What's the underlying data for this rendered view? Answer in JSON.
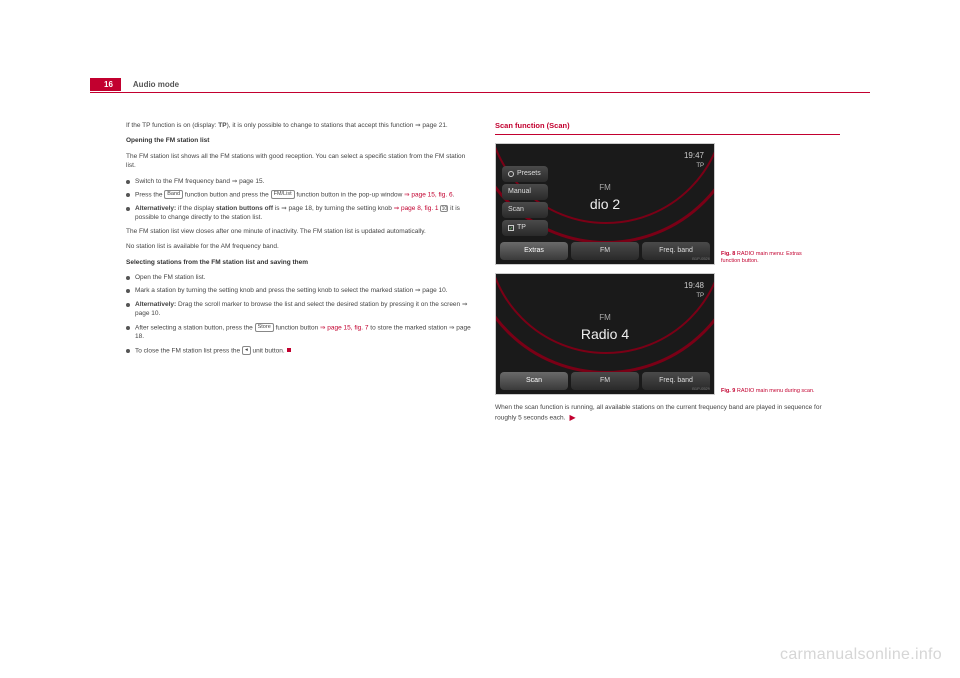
{
  "header": {
    "page_number": "16",
    "section": "Audio mode"
  },
  "left_column": {
    "intro_prefix": "If the TP function is on (display: ",
    "intro_bold": "TP",
    "intro_suffix": "), it is only possible to change to stations that accept this function ⇒ page 21.",
    "sub1_title": "Opening the FM station list",
    "sub1_p1": "The FM station list shows all the FM stations with good reception. You can select a specific station from the FM station list.",
    "b1": "Switch to the FM frequency band ⇒ page 15.",
    "b2_a": "Press the ",
    "b2_btn1": "Band",
    "b2_b": " function button and press the ",
    "b2_btn2": "FM/List",
    "b2_c": " function button in the pop-up window ",
    "b2_ref": "⇒ page 15, fig. 6",
    "b2_d": ".",
    "b3_a": "Alternatively:",
    "b3_b": " if the display ",
    "b3_bold": "station buttons off",
    "b3_c": " is ⇒ page 18, by turning the setting knob ",
    "b3_ref": "⇒ page 8, fig. 1",
    "b3_d": " it is possible to change directly to the station list.",
    "knob_icon": "10",
    "p_after_b3": "The FM station list view closes after one minute of inactivity. The FM station list is updated automatically.",
    "p_no_am": "No station list is available for the AM frequency band.",
    "sub2_title": "Selecting stations from the FM station list and saving them",
    "s2_b1": "Open the FM station list.",
    "s2_b2": "Mark a station by turning the setting knob and press the setting knob to select the marked station ⇒ page 10.",
    "s2_b3_a": "Alternatively:",
    "s2_b3_b": " Drag the scroll marker to browse the list and select the desired station by pressing it on the screen ⇒ page 10.",
    "s2_b4_a": "After selecting a station button, press the ",
    "s2_b4_btn": "Store",
    "s2_b4_b": " function button ",
    "s2_b4_ref": "⇒ page 15, fig. 7",
    "s2_b4_c": " to store the marked station ⇒ page 18.",
    "s2_b5_a": "To close the FM station list press the ",
    "s2_b5_btn": "◂",
    "s2_b5_b": " unit button."
  },
  "right_column": {
    "section_title": "Scan function (Scan)",
    "fig8": {
      "clock": "19:47",
      "tp": "TP",
      "band": "FM",
      "station": "dio 2",
      "menu": {
        "presets": "Presets",
        "manual": "Manual",
        "scan": "Scan",
        "tp_label": "TP"
      },
      "bottom": {
        "extras": "Extras",
        "fm": "FM",
        "freq": "Freq. band"
      },
      "code": "B1P-0528",
      "caption_num": "Fig. 8",
      "caption_text": "RADIO main menu: Extras function button."
    },
    "fig9": {
      "clock": "19:48",
      "tp": "TP",
      "band": "FM",
      "station": "Radio 4",
      "bottom": {
        "scan": "Scan",
        "fm": "FM",
        "freq": "Freq. band"
      },
      "code": "B1P-0529",
      "caption_num": "Fig. 9",
      "caption_text": "RADIO main menu during scan."
    },
    "footer_text": "When the scan function is running, all available stations on the current frequency band are played in sequence for roughly 5 seconds each."
  },
  "watermark": "carmanualsonline.info",
  "colors": {
    "accent": "#c2002f",
    "screen_bg": "#1a1a1a",
    "arc": "#7a0016",
    "watermark": "#d6d6d6"
  }
}
